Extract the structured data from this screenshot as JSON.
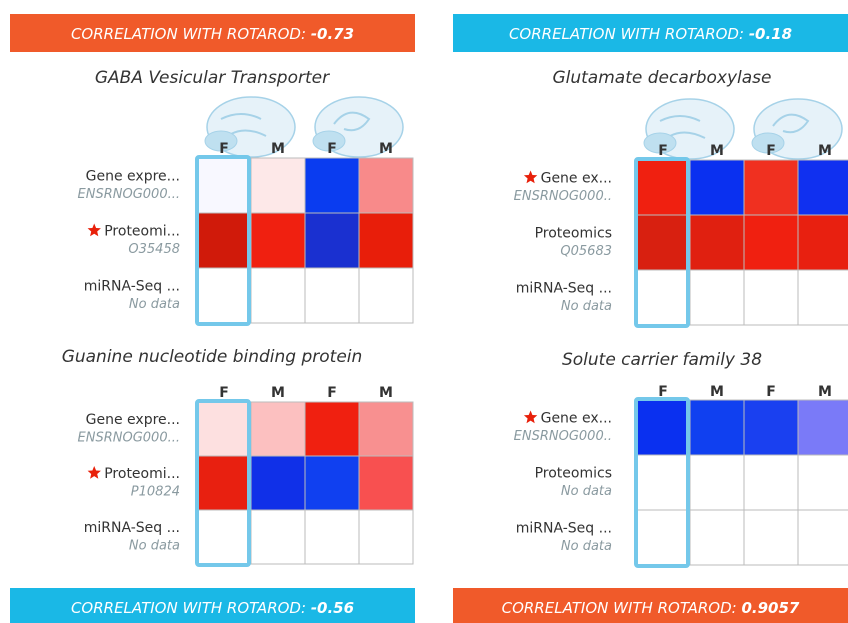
{
  "panels": [
    {
      "banner": {
        "label": "CORRELATION WITH ROTAROD:",
        "value": "-0.73",
        "color": "#f05a2a"
      },
      "title": "GABA Vesicular Transporter",
      "brain_icons": true,
      "columns": [
        "F",
        "M",
        "F",
        "M"
      ],
      "rows": [
        {
          "label": "Gene expre...",
          "sublabel": "ENSRNOG000...",
          "starred": false,
          "cells": [
            "#f8f8ff",
            "#fde8e8",
            "#0a3cf0",
            "#f88a8a"
          ]
        },
        {
          "label": "Proteomi...",
          "sublabel": "O35458",
          "starred": true,
          "cells": [
            "#d01a0a",
            "#f02010",
            "#1a30d0",
            "#e81e0a"
          ]
        },
        {
          "label": "miRNA-Seq ...",
          "sublabel": "No data",
          "starred": false,
          "cells": [
            "#ffffff",
            "#ffffff",
            "#ffffff",
            "#ffffff"
          ]
        }
      ]
    },
    {
      "banner": {
        "label": "CORRELATION WITH ROTAROD:",
        "value": "-0.56",
        "color": "#1ab8e6"
      },
      "title": "Guanine nucleotide binding protein",
      "brain_icons": false,
      "columns": [
        "F",
        "M",
        "F",
        "M"
      ],
      "rows": [
        {
          "label": "Gene expre...",
          "sublabel": "ENSRNOG000...",
          "starred": false,
          "cells": [
            "#fde0e0",
            "#fcc0c0",
            "#f02010",
            "#f89090"
          ]
        },
        {
          "label": "Proteomi...",
          "sublabel": "P10824",
          "starred": true,
          "cells": [
            "#e82010",
            "#1030e8",
            "#1040f0",
            "#f85050"
          ]
        },
        {
          "label": "miRNA-Seq ...",
          "sublabel": "No data",
          "starred": false,
          "cells": [
            "#ffffff",
            "#ffffff",
            "#ffffff",
            "#ffffff"
          ]
        }
      ]
    },
    {
      "banner": {
        "label": "CORRELATION WITH ROTAROD:",
        "value": "-0.18",
        "color": "#1ab8e6"
      },
      "title": "Glutamate decarboxylase",
      "brain_icons": true,
      "columns": [
        "F",
        "M",
        "F",
        "M"
      ],
      "rows": [
        {
          "label": "Gene ex...",
          "sublabel": "ENSRNOG000..",
          "starred": true,
          "cells": [
            "#f02010",
            "#0a30f0",
            "#f03020",
            "#1030f0"
          ]
        },
        {
          "label": "Proteomics",
          "sublabel": "Q05683",
          "starred": false,
          "cells": [
            "#d82010",
            "#e02010",
            "#f02010",
            "#e82010"
          ]
        },
        {
          "label": "miRNA-Seq ...",
          "sublabel": "No data",
          "starred": false,
          "cells": [
            "#ffffff",
            "#ffffff",
            "#ffffff",
            "#ffffff"
          ]
        }
      ]
    },
    {
      "banner": {
        "label": "CORRELATION WITH ROTAROD:",
        "value": "0.9057",
        "color": "#f05a2a"
      },
      "title": "Solute carrier family 38",
      "brain_icons": false,
      "columns": [
        "F",
        "M",
        "F",
        "M"
      ],
      "rows": [
        {
          "label": "Gene ex...",
          "sublabel": "ENSRNOG000..",
          "starred": true,
          "cells": [
            "#0a30f0",
            "#1040f0",
            "#1a40f0",
            "#7a7af8"
          ]
        },
        {
          "label": "Proteomics",
          "sublabel": "No data",
          "starred": false,
          "cells": [
            "#ffffff",
            "#ffffff",
            "#ffffff",
            "#ffffff"
          ]
        },
        {
          "label": "miRNA-Seq ...",
          "sublabel": "No data",
          "starred": false,
          "cells": [
            "#ffffff",
            "#ffffff",
            "#ffffff",
            "#ffffff"
          ]
        }
      ]
    }
  ]
}
